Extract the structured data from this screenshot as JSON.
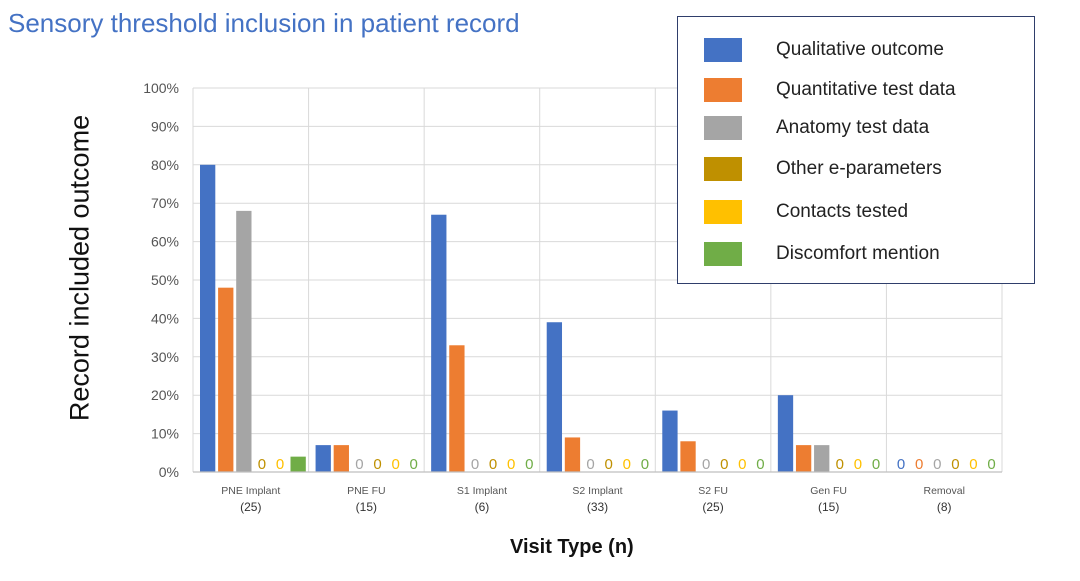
{
  "chart_data": {
    "type": "bar",
    "title": "Sensory threshold inclusion in patient record",
    "xlabel": "Visit Type (n)",
    "ylabel": "Record included outcome",
    "ylim": [
      0,
      100
    ],
    "y_ticks": [
      "0%",
      "10%",
      "20%",
      "30%",
      "40%",
      "50%",
      "60%",
      "70%",
      "80%",
      "90%",
      "100%"
    ],
    "categories": [
      {
        "name": "PNE Implant",
        "n": "(25)"
      },
      {
        "name": "PNE FU",
        "n": "(15)"
      },
      {
        "name": "S1 Implant",
        "n": "(6)"
      },
      {
        "name": "S2 Implant",
        "n": "(33)"
      },
      {
        "name": "S2 FU",
        "n": "(25)"
      },
      {
        "name": "Gen FU",
        "n": "(15)"
      },
      {
        "name": "Removal",
        "n": "(8)"
      }
    ],
    "series": [
      {
        "name": "Qualitative outcome",
        "color": "#4472c4",
        "values": [
          80,
          7,
          67,
          39,
          16,
          20,
          0
        ]
      },
      {
        "name": "Quantitative test data",
        "color": "#ed7d31",
        "values": [
          48,
          7,
          33,
          9,
          8,
          7,
          0
        ]
      },
      {
        "name": "Anatomy test data",
        "color": "#a5a5a5",
        "values": [
          68,
          0,
          0,
          0,
          0,
          7,
          0
        ]
      },
      {
        "name": "Other e-parameters",
        "color": "#bf9000",
        "values": [
          0,
          0,
          0,
          0,
          0,
          0,
          0
        ]
      },
      {
        "name": "Contacts tested",
        "color": "#ffc000",
        "values": [
          0,
          0,
          0,
          0,
          0,
          0,
          0
        ]
      },
      {
        "name": "Discomfort mention",
        "color": "#70ad47",
        "values": [
          4,
          0,
          0,
          0,
          0,
          0,
          0
        ]
      }
    ],
    "zero_label": "0",
    "grid": true,
    "legend_position": "top-right"
  }
}
